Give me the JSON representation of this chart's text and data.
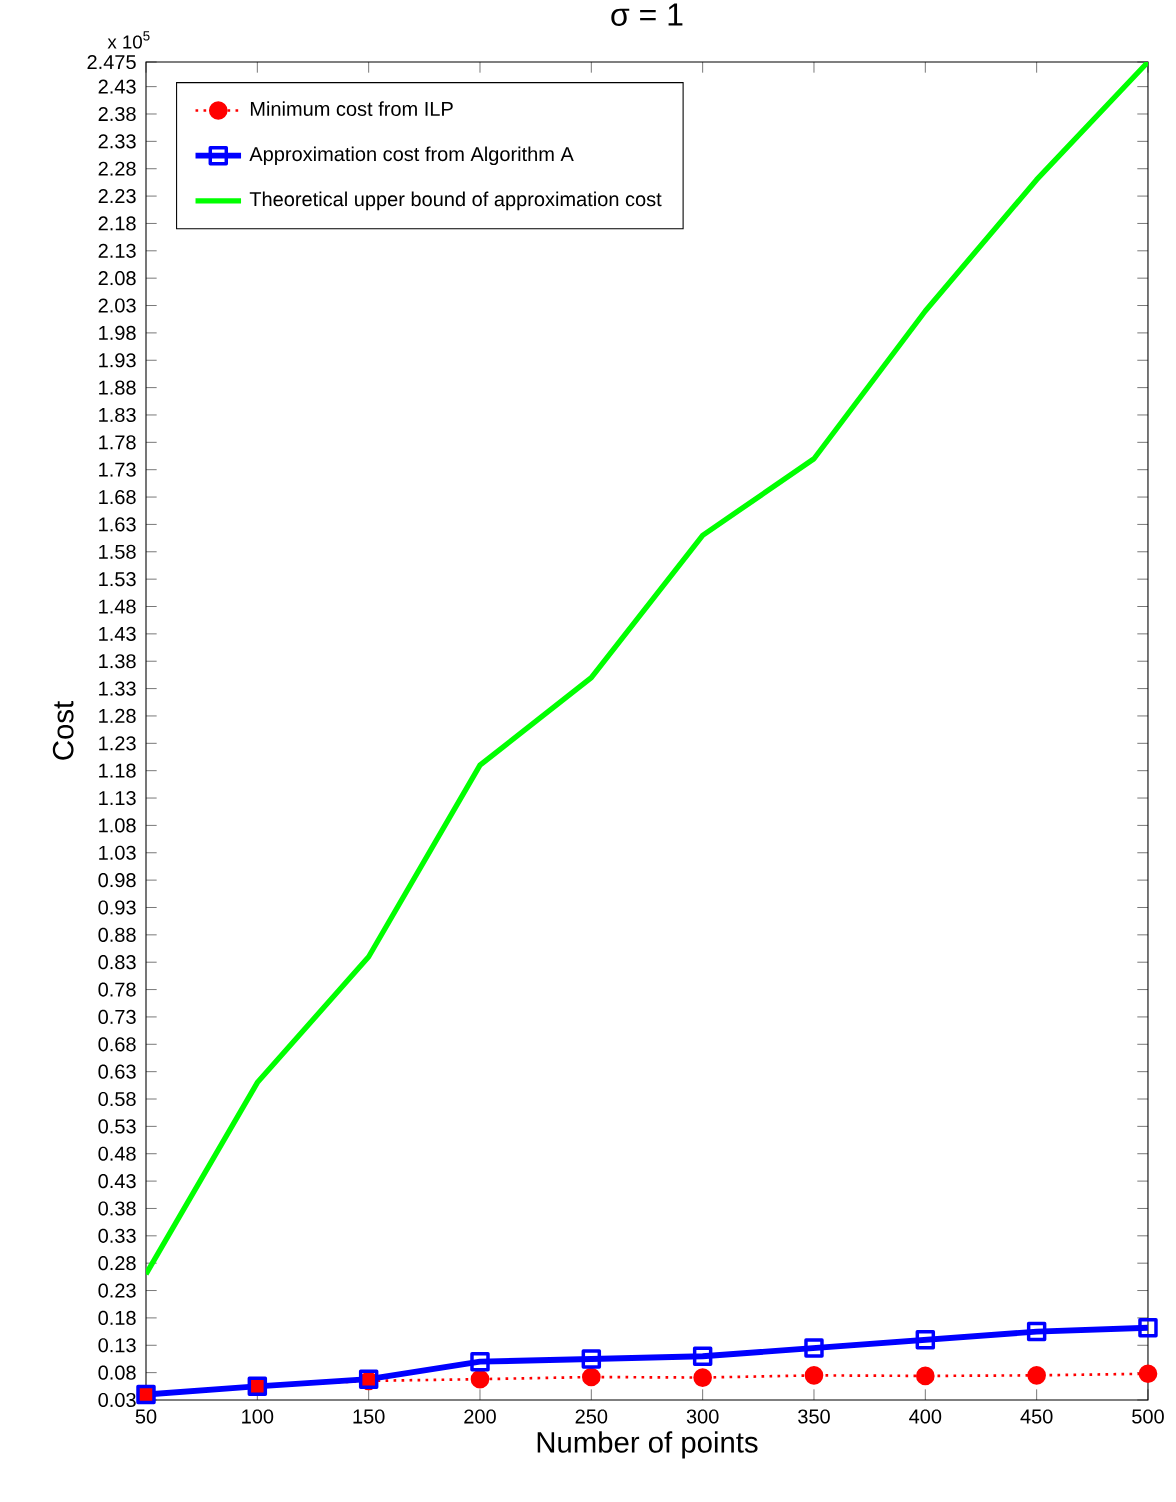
{
  "chart_data": {
    "type": "line",
    "title": "σ = 1",
    "xlabel": "Number of points",
    "ylabel": "Cost",
    "annotations": [
      "x 10$^{5}$"
    ],
    "x": [
      50,
      100,
      150,
      200,
      250,
      300,
      350,
      400,
      450,
      500
    ],
    "series": [
      {
        "name": "Minimum cost from ILP",
        "color": "#ff0000",
        "marker": "circle",
        "line_style": "dotted",
        "values": [
          0.04,
          0.055,
          0.065,
          0.068,
          0.072,
          0.071,
          0.075,
          0.074,
          0.075,
          0.078
        ]
      },
      {
        "name": "Approximation cost from Algorithm A",
        "color": "#0000ff",
        "marker": "square",
        "line_style": "solid",
        "values": [
          0.04,
          0.055,
          0.068,
          0.1,
          0.105,
          0.11,
          0.125,
          0.14,
          0.155,
          0.162
        ]
      },
      {
        "name": "Theoretical upper bound of approximation cost",
        "color": "#00ff00",
        "marker": "none",
        "line_style": "solid",
        "values": [
          0.26,
          0.61,
          0.84,
          1.19,
          1.35,
          1.61,
          1.75,
          2.02,
          2.26,
          2.475
        ]
      }
    ],
    "xlim": [
      50,
      500
    ],
    "xticks": [
      50,
      100,
      150,
      200,
      250,
      300,
      350,
      400,
      450,
      500
    ],
    "ylim": [
      0.03,
      2.475
    ],
    "yticks": [
      0.03,
      0.08,
      0.13,
      0.18,
      0.23,
      0.28,
      0.33,
      0.38,
      0.43,
      0.48,
      0.53,
      0.58,
      0.63,
      0.68,
      0.73,
      0.78,
      0.83,
      0.88,
      0.93,
      0.98,
      1.03,
      1.08,
      1.13,
      1.18,
      1.23,
      1.28,
      1.33,
      1.38,
      1.43,
      1.48,
      1.53,
      1.58,
      1.63,
      1.68,
      1.73,
      1.78,
      1.83,
      1.88,
      1.93,
      1.98,
      2.03,
      2.08,
      2.13,
      2.18,
      2.23,
      2.28,
      2.33,
      2.38,
      2.43,
      2.475
    ],
    "grid": false,
    "legend": "top left"
  }
}
